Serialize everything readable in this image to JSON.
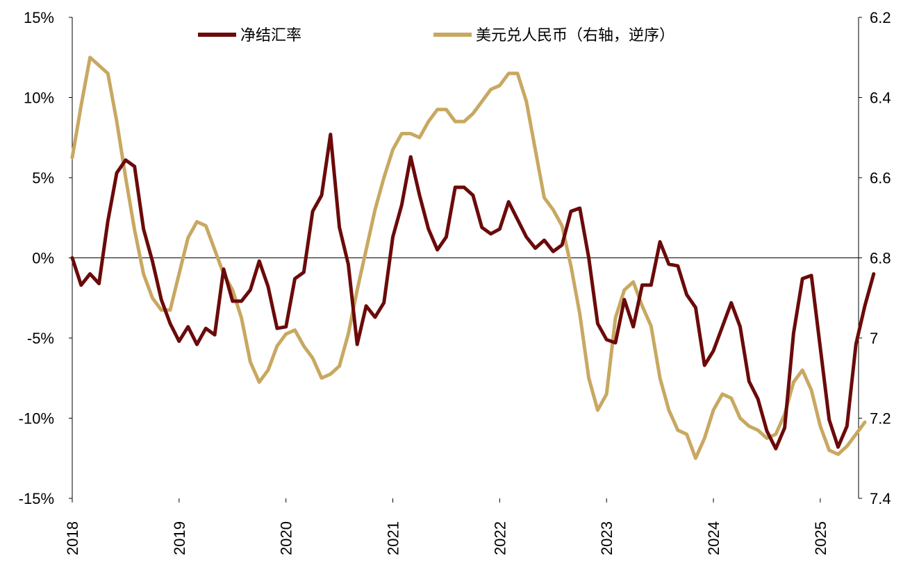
{
  "chart_data": {
    "type": "line",
    "title": "",
    "x_start": "2018-01",
    "x_frequency": "monthly",
    "x_ticks": [
      "2018",
      "2019",
      "2020",
      "2021",
      "2022",
      "2023",
      "2024",
      "2025"
    ],
    "y_left": {
      "label": "",
      "range": [
        -15,
        15
      ],
      "ticks": [
        "15%",
        "10%",
        "5%",
        "0%",
        "-5%",
        "-10%",
        "-15%"
      ],
      "tick_values": [
        15,
        10,
        5,
        0,
        -5,
        -10,
        -15
      ]
    },
    "y_right": {
      "label": "",
      "range": [
        6.2,
        7.4
      ],
      "inverted": true,
      "ticks": [
        "6.2",
        "6.4",
        "6.6",
        "6.8",
        "7",
        "7.2",
        "7.4"
      ],
      "tick_values": [
        6.2,
        6.4,
        6.6,
        6.8,
        7.0,
        7.2,
        7.4
      ]
    },
    "legend_position": "top",
    "series": [
      {
        "name": "净结汇率",
        "axis": "left",
        "color": "#6B0A0A",
        "values": [
          0,
          -1.7,
          -1.0,
          -1.6,
          2.3,
          5.3,
          6.1,
          5.7,
          1.8,
          -0.2,
          -2.6,
          -4.1,
          -5.2,
          -4.3,
          -5.4,
          -4.4,
          -4.8,
          -0.7,
          -2.7,
          -2.7,
          -2.0,
          -0.2,
          -1.8,
          -4.4,
          -4.3,
          -1.3,
          -0.9,
          2.9,
          3.9,
          7.7,
          1.9,
          -0.4,
          -5.4,
          -3.0,
          -3.7,
          -2.8,
          1.3,
          3.3,
          6.3,
          3.9,
          1.8,
          0.5,
          1.3,
          4.4,
          4.4,
          3.9,
          1.9,
          1.5,
          1.8,
          3.5,
          2.4,
          1.3,
          0.6,
          1.1,
          0.4,
          0.8,
          2.9,
          3.1,
          0.0,
          -4.1,
          -5.1,
          -5.3,
          -2.6,
          -4.3,
          -1.7,
          -1.7,
          1.0,
          -0.4,
          -0.5,
          -2.3,
          -3.1,
          -6.7,
          -5.8,
          -4.3,
          -2.8,
          -4.3,
          -7.7,
          -8.8,
          -10.8,
          -11.9,
          -10.6,
          -4.7,
          -1.3,
          -1.1,
          -5.6,
          -10.1,
          -11.8,
          -10.5,
          -5.4,
          -3.0,
          -1.0
        ]
      },
      {
        "name": "美元兑人民币（右轴，逆序）",
        "axis": "right",
        "color": "#C8A862",
        "values": [
          6.55,
          6.42,
          6.3,
          6.32,
          6.34,
          6.46,
          6.6,
          6.73,
          6.84,
          6.9,
          6.93,
          6.93,
          6.84,
          6.75,
          6.71,
          6.72,
          6.78,
          6.84,
          6.88,
          6.95,
          7.06,
          7.11,
          7.08,
          7.02,
          6.99,
          6.98,
          7.02,
          7.05,
          7.1,
          7.09,
          7.07,
          6.99,
          6.88,
          6.78,
          6.68,
          6.6,
          6.53,
          6.49,
          6.49,
          6.5,
          6.46,
          6.43,
          6.43,
          6.46,
          6.46,
          6.44,
          6.41,
          6.38,
          6.37,
          6.34,
          6.34,
          6.41,
          6.53,
          6.65,
          6.68,
          6.72,
          6.82,
          6.94,
          7.1,
          7.18,
          7.14,
          6.95,
          6.88,
          6.86,
          6.92,
          6.97,
          7.1,
          7.18,
          7.23,
          7.24,
          7.3,
          7.25,
          7.18,
          7.14,
          7.15,
          7.2,
          7.22,
          7.23,
          7.25,
          7.24,
          7.19,
          7.11,
          7.08,
          7.13,
          7.22,
          7.28,
          7.29,
          7.27,
          7.24,
          7.21
        ]
      }
    ]
  }
}
